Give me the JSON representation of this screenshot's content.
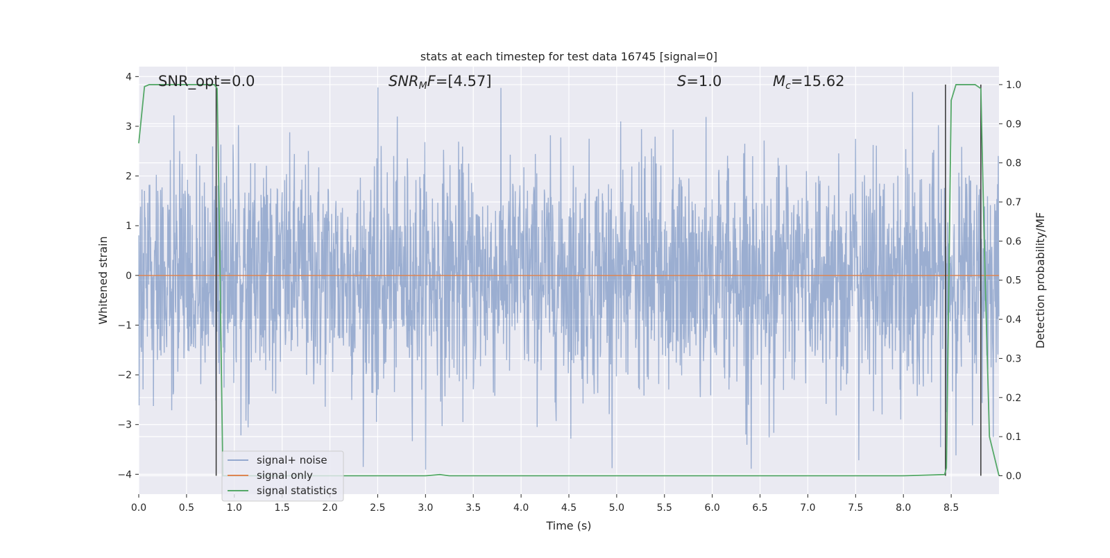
{
  "chart_data": {
    "type": "line",
    "title": "stats at each timestep for test data 16745 [signal=0]",
    "xlabel": "Time (s)",
    "ylabel": "Whitened strain",
    "y2label": "Detection probability/MF",
    "xlim": [
      0.0,
      9.0
    ],
    "ylim": [
      -4.4,
      4.2
    ],
    "y2lim": [
      -0.047,
      1.046
    ],
    "xticks": [
      "0.0",
      "0.5",
      "1.0",
      "1.5",
      "2.0",
      "2.5",
      "3.0",
      "3.5",
      "4.0",
      "4.5",
      "5.0",
      "5.5",
      "6.0",
      "6.5",
      "7.0",
      "7.5",
      "8.0",
      "8.5"
    ],
    "yticks": [
      "4",
      "3",
      "2",
      "1",
      "0",
      "−1",
      "−2",
      "−3",
      "−4"
    ],
    "y2ticks": [
      "1.0",
      "0.9",
      "0.8",
      "0.7",
      "0.6",
      "0.5",
      "0.4",
      "0.3",
      "0.2",
      "0.1",
      "0.0"
    ],
    "grid": true,
    "legend_position": "bottom-left",
    "annotations": {
      "snr_opt": "SNR_opt=0.0",
      "snr_mf_base": "SNR",
      "snr_mf_sub": "M",
      "snr_mf_tail": "F=[4.57]",
      "s_base": "S",
      "s_tail": "=1.0",
      "mc_base": "M",
      "mc_sub": "c",
      "mc_tail": "=15.62"
    },
    "vlines": [
      0.81,
      8.44,
      8.81
    ],
    "series": [
      {
        "name": "signal+ noise",
        "color": "#4c72b0",
        "alpha": 0.5,
        "description_values": {
          "mean": 0.0,
          "typical_amplitude": 1.6,
          "min": -4.0,
          "max": 3.8
        }
      },
      {
        "name": "signal only",
        "color": "#dd8452",
        "x": [
          0.0,
          9.0
        ],
        "y": [
          0.0,
          0.0
        ]
      },
      {
        "name": "signal statistics",
        "color": "#55a868",
        "axis": "right",
        "x": [
          0.0,
          0.06,
          0.11,
          0.5,
          0.79,
          0.82,
          0.84,
          0.88,
          1.0,
          3.0,
          3.15,
          3.25,
          8.0,
          8.43,
          8.45,
          8.5,
          8.55,
          8.75,
          8.81,
          8.85,
          8.9,
          9.0
        ],
        "y": [
          0.85,
          0.995,
          1.0,
          1.0,
          1.0,
          0.99,
          0.7,
          0.0,
          0.0,
          0.0,
          0.003,
          0.0,
          0.0,
          0.003,
          0.02,
          0.96,
          1.0,
          1.0,
          0.99,
          0.55,
          0.1,
          0.0
        ]
      }
    ]
  }
}
